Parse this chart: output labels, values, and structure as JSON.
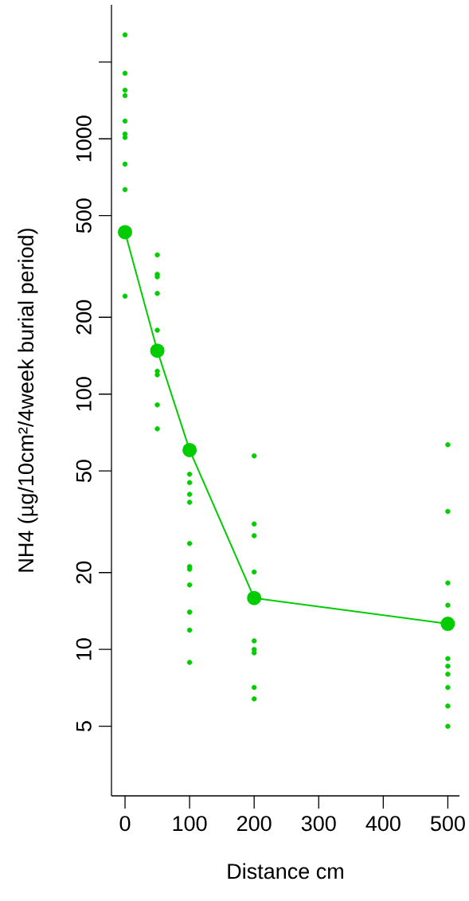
{
  "chart_data": {
    "type": "scatter",
    "xlabel": "Distance cm",
    "ylabel": "NH4 (µg/10cm²/4week burial period)",
    "log": "y",
    "xlim": [
      -21,
      518
    ],
    "xticks": [
      0,
      100,
      200,
      300,
      400,
      500
    ],
    "ylim": [
      2.67,
      3350
    ],
    "yticks": [
      5,
      10,
      20,
      50,
      100,
      200,
      500,
      1000,
      {
        "value": 2000,
        "label": null
      }
    ],
    "series": [
      {
        "color": "#00cc00",
        "marker": "circle",
        "x": [
          0,
          0,
          0,
          0,
          0,
          0,
          0,
          0,
          0,
          0,
          50,
          50,
          50,
          50,
          50,
          50,
          50,
          50,
          50,
          100,
          100,
          100,
          100,
          100,
          100,
          100,
          100,
          100,
          100,
          100,
          200,
          200,
          200,
          200,
          200,
          200,
          200,
          200,
          200,
          500,
          500,
          500,
          500,
          500,
          500,
          500,
          500,
          500,
          500
        ],
        "values": [
          2556,
          1807,
          1550,
          1476,
          1174,
          1044,
          1012,
          796,
          632,
          242,
          351,
          295,
          288,
          248,
          178,
          123,
          119,
          90.8,
          73.1,
          48.6,
          45.0,
          40.5,
          37.7,
          26.0,
          21.1,
          20.6,
          17.9,
          14.0,
          11.9,
          8.9,
          57.3,
          31.0,
          27.9,
          20.1,
          10.8,
          10.0,
          9.7,
          7.1,
          6.4,
          63.4,
          34.7,
          18.2,
          14.9,
          9.2,
          8.6,
          8.0,
          7.1,
          6.0,
          5.0
        ]
      },
      {
        "type": "line",
        "color": "#00cc00",
        "marker": "circle",
        "x": [
          0,
          50,
          100,
          200,
          500
        ],
        "values": [
          431,
          148,
          60.4,
          15.9,
          12.6
        ]
      }
    ]
  }
}
